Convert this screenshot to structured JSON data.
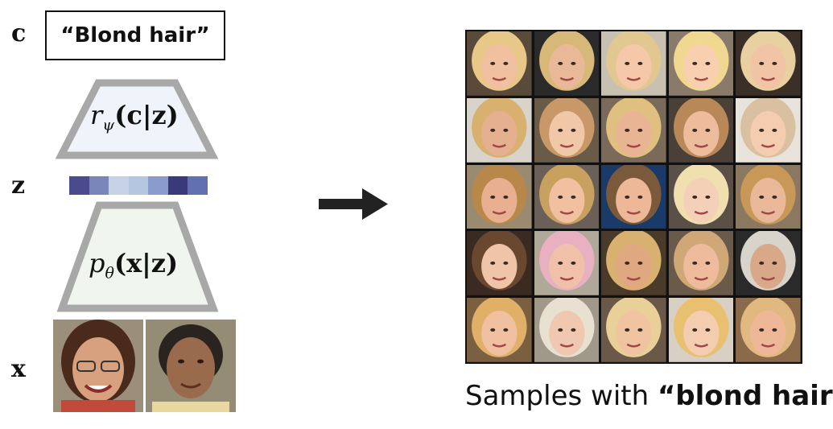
{
  "variables": {
    "c": "c",
    "z": "z",
    "x": "x"
  },
  "condition_text": "“Blond hair”",
  "encoder": {
    "func": "r",
    "subscript": "ψ",
    "args": "(c|z)"
  },
  "decoder": {
    "func": "p",
    "subscript": "θ",
    "args": "(x|z)"
  },
  "latent_colors": [
    "#4a4a8c",
    "#7b86b8",
    "#c6d3e6",
    "#b4c6e0",
    "#8a9ccc",
    "#3a3a7a",
    "#6070b0"
  ],
  "colors": {
    "encoder_fill": "#eef4fa",
    "decoder_fill": "#f0f6ee",
    "trapezoid_stroke": "#a8a8a8",
    "arrow": "#222222"
  },
  "caption": {
    "prefix": "Samples with ",
    "bold": "“blond hair”"
  }
}
